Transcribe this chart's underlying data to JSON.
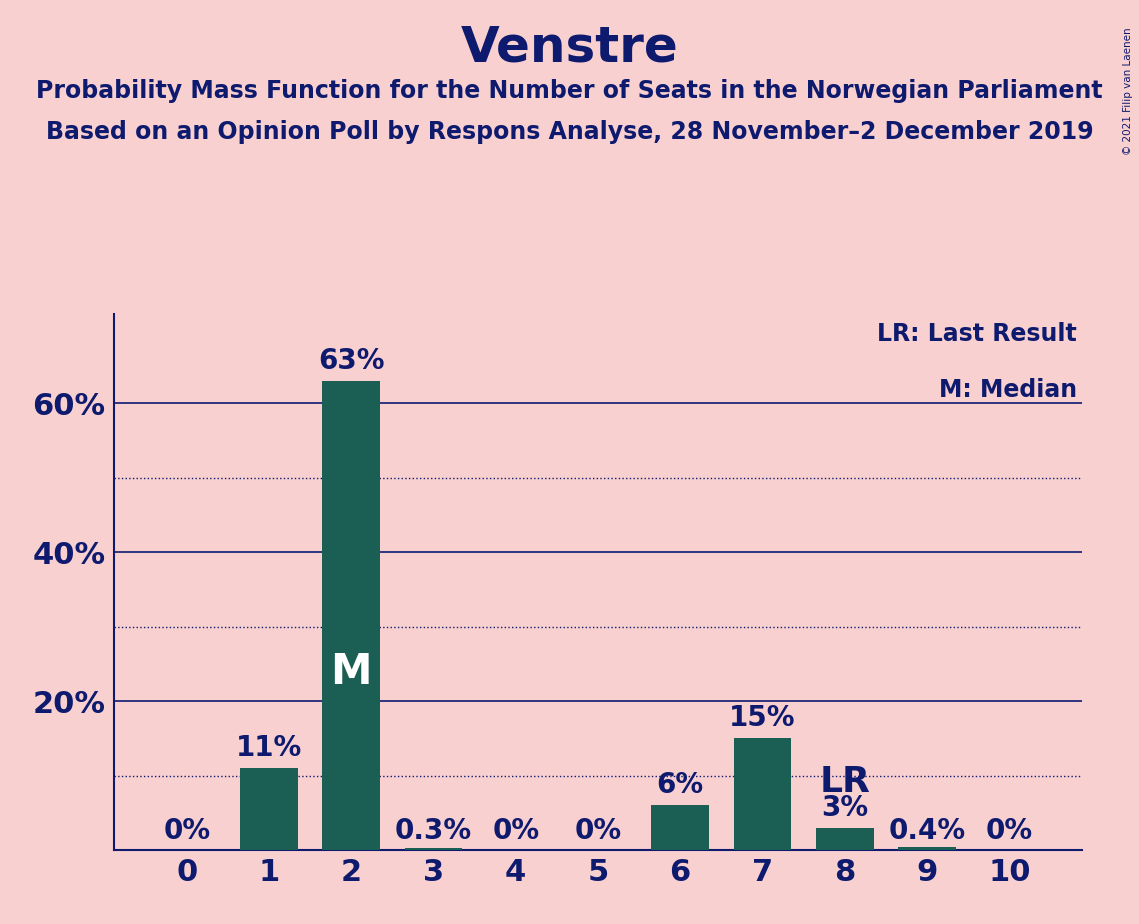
{
  "title": "Venstre",
  "subtitle_line1": "Probability Mass Function for the Number of Seats in the Norwegian Parliament",
  "subtitle_line2": "Based on an Opinion Poll by Respons Analyse, 28 November–2 December 2019",
  "copyright": "© 2021 Filip van Laenen",
  "categories": [
    0,
    1,
    2,
    3,
    4,
    5,
    6,
    7,
    8,
    9,
    10
  ],
  "values": [
    0.0,
    0.11,
    0.63,
    0.003,
    0.0,
    0.0,
    0.06,
    0.15,
    0.03,
    0.004,
    0.0
  ],
  "labels": [
    "0%",
    "11%",
    "63%",
    "0.3%",
    "0%",
    "0%",
    "6%",
    "15%",
    "3%",
    "0.4%",
    "0%"
  ],
  "bar_color": "#1a5e54",
  "background_color": "#f9d0d0",
  "text_color": "#0d1a6e",
  "median_bar": 2,
  "lr_bar": 8,
  "ylim": [
    0,
    0.72
  ],
  "yticks_solid": [
    0.2,
    0.4,
    0.6
  ],
  "yticks_dotted": [
    0.1,
    0.3,
    0.5
  ],
  "ytick_labels": {
    "0.20": "20%",
    "0.40": "40%",
    "0.60": "60%"
  },
  "legend_lr": "LR: Last Result",
  "legend_m": "M: Median",
  "title_fontsize": 36,
  "subtitle_fontsize": 17,
  "axis_fontsize": 22,
  "bar_label_fontsize": 20,
  "median_label_fontsize": 30,
  "lr_label_fontsize": 26
}
